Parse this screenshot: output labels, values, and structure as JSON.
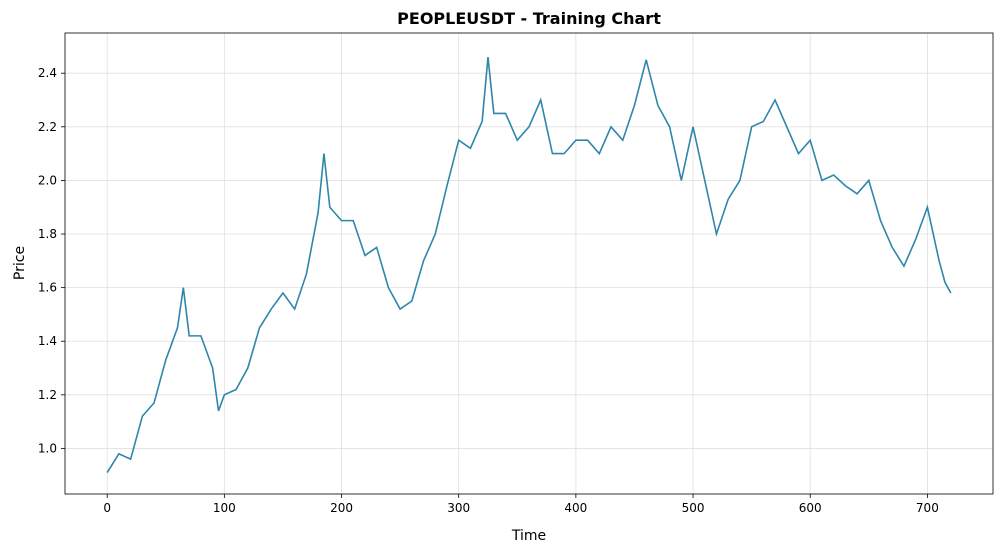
{
  "chart_data": {
    "type": "line",
    "title": "PEOPLEUSDT - Training Chart",
    "x_label": "Time",
    "y_label": "Price",
    "x": [
      0,
      10,
      20,
      30,
      40,
      50,
      60,
      65,
      70,
      80,
      90,
      95,
      100,
      110,
      120,
      130,
      140,
      150,
      160,
      170,
      180,
      185,
      190,
      200,
      210,
      220,
      230,
      240,
      250,
      260,
      270,
      280,
      290,
      300,
      310,
      320,
      325,
      330,
      340,
      350,
      360,
      370,
      380,
      390,
      400,
      410,
      420,
      430,
      440,
      450,
      460,
      470,
      480,
      490,
      500,
      510,
      520,
      530,
      540,
      550,
      560,
      570,
      580,
      590,
      600,
      610,
      620,
      630,
      640,
      650,
      660,
      670,
      680,
      690,
      700,
      710,
      715,
      720
    ],
    "series": [
      {
        "name": "Price",
        "color": "#2e86ab",
        "values": [
          0.91,
          0.98,
          0.96,
          1.12,
          1.17,
          1.33,
          1.45,
          1.6,
          1.42,
          1.42,
          1.3,
          1.14,
          1.2,
          1.22,
          1.3,
          1.45,
          1.52,
          1.58,
          1.52,
          1.65,
          1.88,
          2.1,
          1.9,
          1.85,
          1.85,
          1.72,
          1.75,
          1.6,
          1.52,
          1.55,
          1.7,
          1.8,
          1.98,
          2.15,
          2.12,
          2.22,
          2.46,
          2.25,
          2.25,
          2.15,
          2.2,
          2.3,
          2.1,
          2.1,
          2.15,
          2.15,
          2.1,
          2.2,
          2.15,
          2.28,
          2.45,
          2.28,
          2.2,
          2.0,
          2.2,
          2.0,
          1.8,
          1.93,
          2.0,
          2.2,
          2.22,
          2.3,
          2.2,
          2.1,
          2.15,
          2.0,
          2.02,
          1.98,
          1.95,
          2.0,
          1.85,
          1.75,
          1.68,
          1.78,
          1.9,
          1.7,
          1.62,
          1.58
        ]
      }
    ],
    "xlim": [
      -36,
      756
    ],
    "xticks": [
      0,
      100,
      200,
      300,
      400,
      500,
      600,
      700
    ],
    "ylim": [
      0.83,
      2.55
    ],
    "yticks": [
      {
        "value": 1.0,
        "label": "1.0"
      },
      1.2,
      1.4,
      1.6,
      1.8,
      {
        "value": 2.0,
        "label": "2.0"
      },
      2.2,
      2.4
    ],
    "grid": true
  }
}
